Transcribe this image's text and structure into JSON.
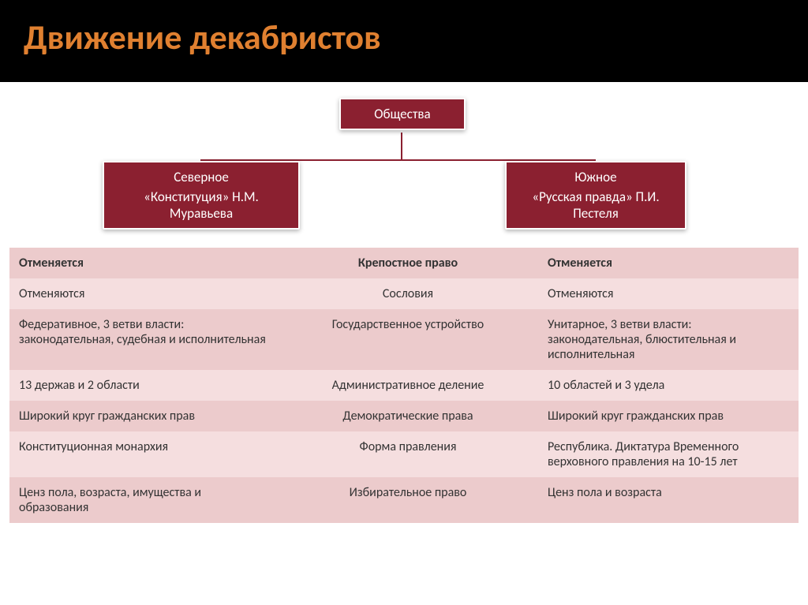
{
  "title": "Движение декабристов",
  "title_color": "#e08030",
  "title_bg": "#000000",
  "title_fontsize": 44,
  "orgchart": {
    "root": {
      "label": "Общества"
    },
    "left": {
      "line1": "Северное",
      "line2": "«Конституция» Н.М. Муравьева"
    },
    "right": {
      "line1": "Южное",
      "line2": "«Русская правда» П.И. Пестеля"
    },
    "node_bg": "#8b2030",
    "node_fg": "#ffffff",
    "connector_color": "#8b2030"
  },
  "table": {
    "row_colors": {
      "light": "#f5dedf",
      "dark": "#eccbcc"
    },
    "text_color": "#333333",
    "fontsize": 16,
    "columns": [
      "left",
      "center",
      "right"
    ],
    "rows": [
      {
        "header": true,
        "bg": "dark",
        "cells": [
          "Отменяется",
          "Крепостное право",
          "Отменяется"
        ]
      },
      {
        "bg": "light",
        "cells": [
          "Отменяются",
          "Сословия",
          "Отменяются"
        ]
      },
      {
        "bg": "dark",
        "cells": [
          "Федеративное, 3 ветви власти: законодательная, судебная и исполнительная",
          "Государственное устройство",
          "Унитарное, 3 ветви власти: законодательная, блюстительная и исполнительная"
        ]
      },
      {
        "bg": "light",
        "cells": [
          "13 держав и 2 области",
          "Административное деление",
          "10 областей и 3 удела"
        ]
      },
      {
        "bg": "dark",
        "cells": [
          "Широкий круг гражданских прав",
          "Демократические права",
          "Широкий круг гражданских прав"
        ]
      },
      {
        "bg": "light",
        "cells": [
          "Конституционная монархия",
          "Форма правления",
          "Республика. Диктатура Временного верховного правления на 10-15 лет"
        ]
      },
      {
        "bg": "dark",
        "cells": [
          "Ценз пола, возраста, имущества и образования",
          "Избирательное право",
          "Ценз пола и возраста"
        ]
      }
    ]
  }
}
